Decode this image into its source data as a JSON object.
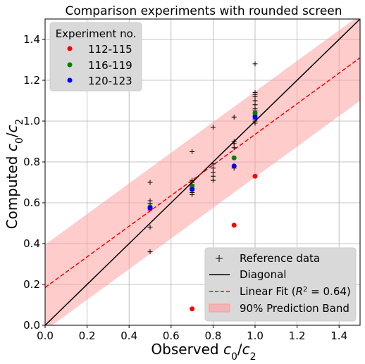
{
  "chart_data": {
    "type": "scatter",
    "title": "Comparison experiments with rounded screen",
    "xlabel_prefix": "Observed ",
    "ylabel_prefix": "Computed ",
    "label_symbol": "c",
    "label_sub_num": "0",
    "label_sub_den": "2",
    "xlim": [
      0.0,
      1.5
    ],
    "ylim": [
      0.0,
      1.5
    ],
    "xticks": [
      "0.0",
      "0.2",
      "0.4",
      "0.6",
      "0.8",
      "1.0",
      "1.2",
      "1.4"
    ],
    "yticks": [
      "0.0",
      "0.2",
      "0.4",
      "0.6",
      "0.8",
      "1.0",
      "1.2",
      "1.4"
    ],
    "grid": true,
    "experiment_legend": {
      "title": "Experiment no.",
      "location": "upper-left",
      "entries": [
        {
          "label": "112-115",
          "color": "#ff0000"
        },
        {
          "label": "116-119",
          "color": "#008000"
        },
        {
          "label": "120-123",
          "color": "#0000ff"
        }
      ]
    },
    "method_legend": {
      "location": "lower-right",
      "reference": "Reference data",
      "diagonal": "Diagonal",
      "fit_prefix": "Linear Fit (",
      "fit_r": "R",
      "fit_exp": "2",
      "fit_value": " = 0.64)",
      "band": "90% Prediction Band"
    },
    "linear_fit": {
      "slope": 0.75,
      "intercept": 0.185,
      "color": "#ff0000"
    },
    "prediction_band": {
      "half_width": 0.21,
      "color": "#ff9999"
    },
    "diagonal": {
      "color": "#000000"
    },
    "series": [
      {
        "name": "112-115",
        "color": "#ff0000",
        "points": [
          [
            0.5,
            0.57
          ],
          [
            0.7,
            0.08
          ],
          [
            0.9,
            0.49
          ],
          [
            1.0,
            0.73
          ]
        ]
      },
      {
        "name": "116-119",
        "color": "#008000",
        "points": [
          [
            0.5,
            0.58
          ],
          [
            0.7,
            0.68
          ],
          [
            0.9,
            0.82
          ],
          [
            1.0,
            1.04
          ]
        ]
      },
      {
        "name": "120-123",
        "color": "#0000ff",
        "points": [
          [
            0.5,
            0.575
          ],
          [
            0.7,
            0.665
          ],
          [
            0.9,
            0.78
          ],
          [
            1.0,
            1.02
          ]
        ]
      }
    ],
    "reference_data": [
      [
        0.5,
        0.36
      ],
      [
        0.5,
        0.48
      ],
      [
        0.5,
        0.58
      ],
      [
        0.5,
        0.595
      ],
      [
        0.5,
        0.61
      ],
      [
        0.5,
        0.7
      ],
      [
        0.7,
        0.64
      ],
      [
        0.7,
        0.65
      ],
      [
        0.7,
        0.67
      ],
      [
        0.7,
        0.69
      ],
      [
        0.7,
        0.7
      ],
      [
        0.7,
        0.71
      ],
      [
        0.7,
        0.85
      ],
      [
        0.8,
        0.71
      ],
      [
        0.8,
        0.73
      ],
      [
        0.8,
        0.75
      ],
      [
        0.8,
        0.77
      ],
      [
        0.8,
        0.79
      ],
      [
        0.8,
        0.97
      ],
      [
        0.9,
        0.77
      ],
      [
        0.9,
        0.87
      ],
      [
        0.9,
        0.89
      ],
      [
        0.9,
        0.9
      ],
      [
        0.9,
        1.02
      ],
      [
        1.0,
        0.99
      ],
      [
        1.0,
        1.0
      ],
      [
        1.0,
        1.01
      ],
      [
        1.0,
        1.03
      ],
      [
        1.0,
        1.05
      ],
      [
        1.0,
        1.06
      ],
      [
        1.0,
        1.08
      ],
      [
        1.0,
        1.1
      ],
      [
        1.0,
        1.12
      ],
      [
        1.0,
        1.13
      ],
      [
        1.0,
        1.14
      ],
      [
        1.0,
        1.28
      ]
    ]
  }
}
